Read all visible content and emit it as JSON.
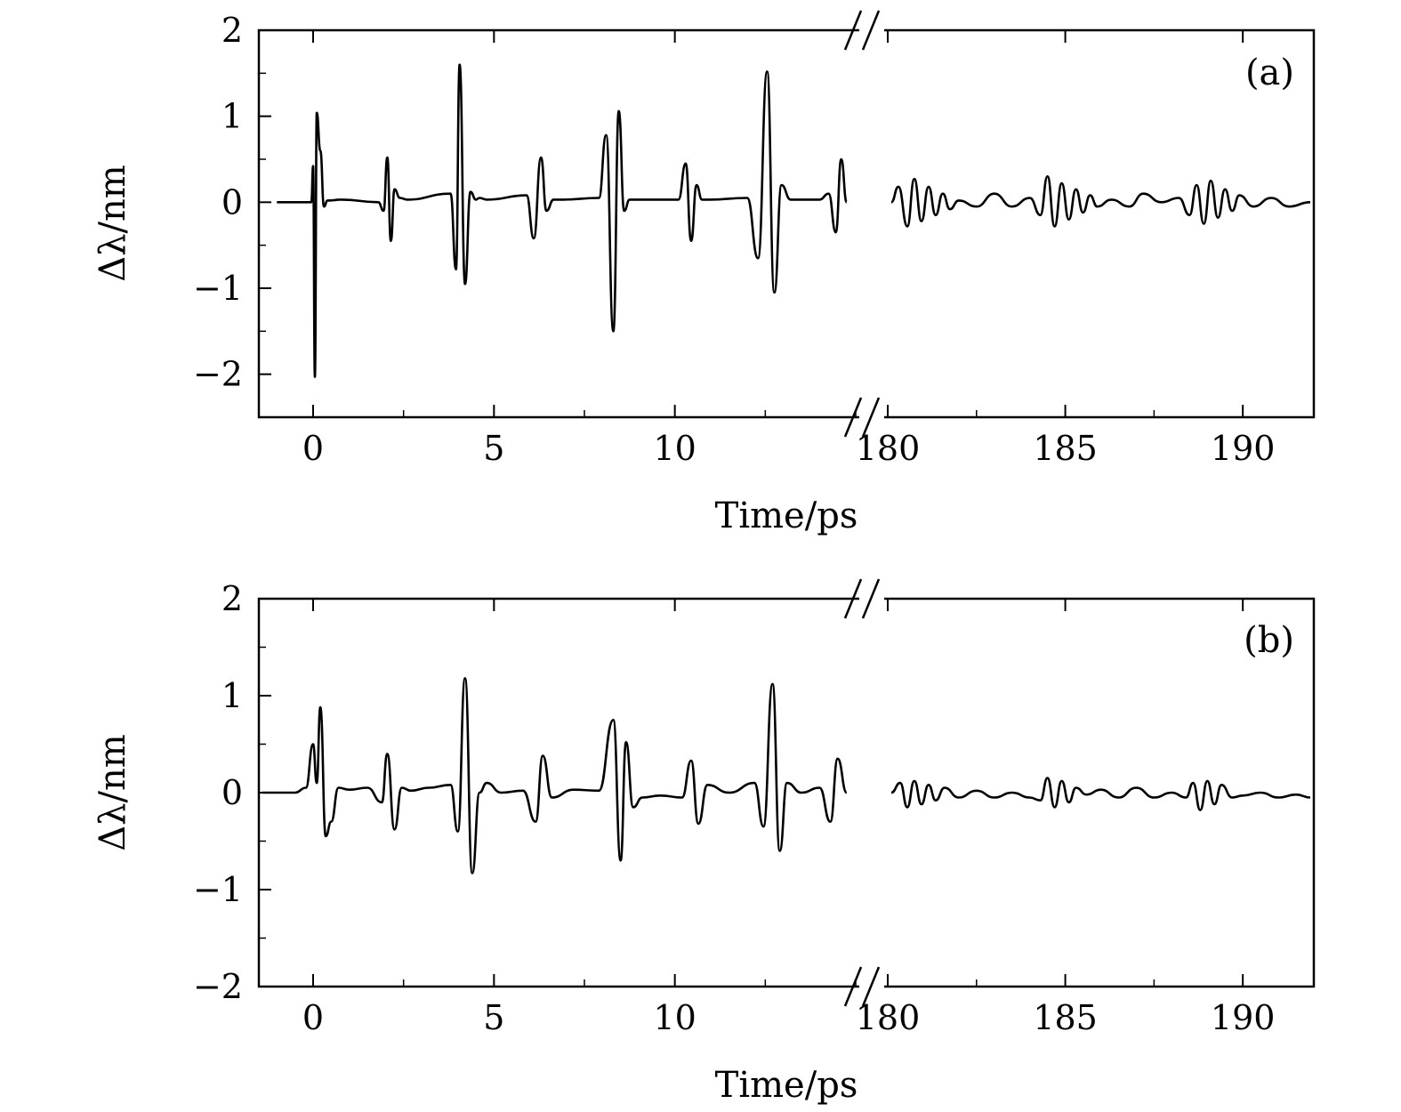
{
  "chart_data": [
    {
      "type": "line",
      "panel_label": "(a)",
      "xlabel": "Time/ps",
      "ylabel": "Δλ/nm",
      "ylim": [
        -2.5,
        2
      ],
      "yticks": [
        2,
        1,
        0,
        -1,
        -2
      ],
      "ytick_labels": [
        "2",
        "1",
        "0",
        "−1",
        "−2"
      ],
      "x_axis_break": true,
      "x_segments": [
        {
          "xlim": [
            -1.5,
            15
          ],
          "xticks": [
            0,
            5,
            10
          ],
          "xtick_labels": [
            "0",
            "5",
            "10"
          ]
        },
        {
          "xlim": [
            180,
            192
          ],
          "xticks": [
            180,
            185,
            190
          ],
          "xtick_labels": [
            "180",
            "185",
            "190"
          ]
        }
      ],
      "series": [
        {
          "segment": 0,
          "x": [
            -1.0,
            -0.05,
            0.0,
            0.05,
            0.1,
            0.2,
            0.3,
            0.4,
            0.8,
            1.8,
            1.95,
            2.05,
            2.15,
            2.25,
            2.4,
            2.6,
            3.8,
            3.95,
            4.05,
            4.2,
            4.35,
            4.5,
            4.6,
            4.8,
            5.9,
            6.1,
            6.3,
            6.45,
            6.65,
            6.9,
            7.9,
            8.1,
            8.3,
            8.45,
            8.6,
            8.75,
            8.95,
            9.3,
            10.1,
            10.3,
            10.45,
            10.6,
            10.75,
            10.95,
            12.0,
            12.3,
            12.55,
            12.75,
            12.95,
            13.2,
            14.0,
            14.25,
            14.45,
            14.6,
            14.75
          ],
          "y": [
            0.0,
            0.0,
            0.42,
            -2.03,
            1.04,
            0.6,
            -0.05,
            0.02,
            0.03,
            0.0,
            -0.1,
            0.52,
            -0.45,
            0.15,
            0.05,
            0.03,
            0.1,
            -0.78,
            1.6,
            -0.95,
            0.12,
            0.03,
            0.05,
            0.03,
            0.08,
            -0.42,
            0.52,
            -0.1,
            0.03,
            0.03,
            0.05,
            0.78,
            -1.5,
            1.06,
            -0.1,
            0.03,
            0.03,
            0.03,
            0.03,
            0.45,
            -0.45,
            0.2,
            0.03,
            0.03,
            0.05,
            -0.65,
            1.52,
            -1.05,
            0.2,
            0.03,
            0.03,
            0.1,
            -0.35,
            0.5,
            0.0
          ]
        },
        {
          "segment": 1,
          "x": [
            180.1,
            180.3,
            180.55,
            180.75,
            180.95,
            181.15,
            181.35,
            181.55,
            181.75,
            182.0,
            182.5,
            183.0,
            183.5,
            184.0,
            184.3,
            184.5,
            184.7,
            184.9,
            185.1,
            185.3,
            185.5,
            185.7,
            185.9,
            186.3,
            186.8,
            187.2,
            187.7,
            188.2,
            188.5,
            188.7,
            188.9,
            189.1,
            189.3,
            189.5,
            189.7,
            189.9,
            190.3,
            190.8,
            191.3,
            191.9
          ],
          "y": [
            0.0,
            0.18,
            -0.28,
            0.27,
            -0.22,
            0.18,
            -0.15,
            0.1,
            -0.08,
            0.02,
            -0.05,
            0.1,
            -0.05,
            0.05,
            -0.15,
            0.3,
            -0.28,
            0.22,
            -0.2,
            0.15,
            -0.12,
            0.08,
            -0.05,
            0.03,
            -0.05,
            0.1,
            0.0,
            0.05,
            -0.15,
            0.2,
            -0.25,
            0.25,
            -0.18,
            0.15,
            -0.1,
            0.08,
            -0.05,
            0.05,
            -0.05,
            0.0
          ]
        }
      ]
    },
    {
      "type": "line",
      "panel_label": "(b)",
      "xlabel": "Time/ps",
      "ylabel": "Δλ/nm",
      "ylim": [
        -2,
        2
      ],
      "yticks": [
        2,
        1,
        0,
        -1,
        -2
      ],
      "ytick_labels": [
        "2",
        "1",
        "0",
        "−1",
        "−2"
      ],
      "x_axis_break": true,
      "x_segments": [
        {
          "xlim": [
            -1.5,
            15
          ],
          "xticks": [
            0,
            5,
            10
          ],
          "xtick_labels": [
            "0",
            "5",
            "10"
          ]
        },
        {
          "xlim": [
            180,
            192
          ],
          "xticks": [
            180,
            185,
            190
          ],
          "xtick_labels": [
            "180",
            "185",
            "190"
          ]
        }
      ],
      "series": [
        {
          "segment": 0,
          "x": [
            -1.4,
            -0.5,
            -0.2,
            0.0,
            0.1,
            0.2,
            0.35,
            0.5,
            0.7,
            1.0,
            1.5,
            1.9,
            2.05,
            2.25,
            2.45,
            2.7,
            3.2,
            3.8,
            4.0,
            4.2,
            4.4,
            4.6,
            4.8,
            5.2,
            5.8,
            6.15,
            6.35,
            6.6,
            7.2,
            7.9,
            8.3,
            8.5,
            8.65,
            8.85,
            9.1,
            9.6,
            10.2,
            10.45,
            10.65,
            10.9,
            11.5,
            12.2,
            12.45,
            12.7,
            12.9,
            13.1,
            13.5,
            14.0,
            14.3,
            14.5,
            14.75
          ],
          "y": [
            0.0,
            0.0,
            0.05,
            0.5,
            0.1,
            0.88,
            -0.45,
            -0.3,
            0.05,
            0.03,
            0.05,
            -0.1,
            0.4,
            -0.38,
            0.05,
            0.02,
            0.05,
            0.08,
            -0.4,
            1.18,
            -0.83,
            0.0,
            0.1,
            0.0,
            0.02,
            -0.3,
            0.38,
            -0.05,
            0.03,
            0.02,
            0.75,
            -0.7,
            0.52,
            -0.15,
            -0.05,
            -0.03,
            -0.05,
            0.33,
            -0.32,
            0.08,
            0.0,
            0.1,
            -0.35,
            1.12,
            -0.6,
            0.1,
            0.0,
            0.05,
            -0.3,
            0.35,
            0.0
          ]
        },
        {
          "segment": 1,
          "x": [
            180.1,
            180.35,
            180.55,
            180.75,
            180.95,
            181.15,
            181.35,
            181.6,
            182.0,
            182.5,
            183.0,
            183.5,
            184.0,
            184.3,
            184.5,
            184.7,
            184.9,
            185.1,
            185.3,
            185.6,
            186.0,
            186.5,
            187.0,
            187.5,
            188.0,
            188.4,
            188.6,
            188.8,
            189.0,
            189.2,
            189.4,
            189.7,
            190.0,
            190.5,
            191.0,
            191.5,
            191.9
          ],
          "y": [
            0.0,
            0.1,
            -0.15,
            0.12,
            -0.12,
            0.08,
            -0.08,
            0.05,
            -0.05,
            0.02,
            -0.05,
            0.0,
            -0.05,
            -0.08,
            0.15,
            -0.15,
            0.12,
            -0.1,
            0.05,
            -0.02,
            0.03,
            -0.05,
            0.05,
            -0.05,
            0.0,
            -0.05,
            0.1,
            -0.18,
            0.12,
            -0.12,
            0.08,
            -0.05,
            -0.03,
            0.0,
            -0.05,
            -0.02,
            -0.05
          ]
        }
      ]
    }
  ]
}
